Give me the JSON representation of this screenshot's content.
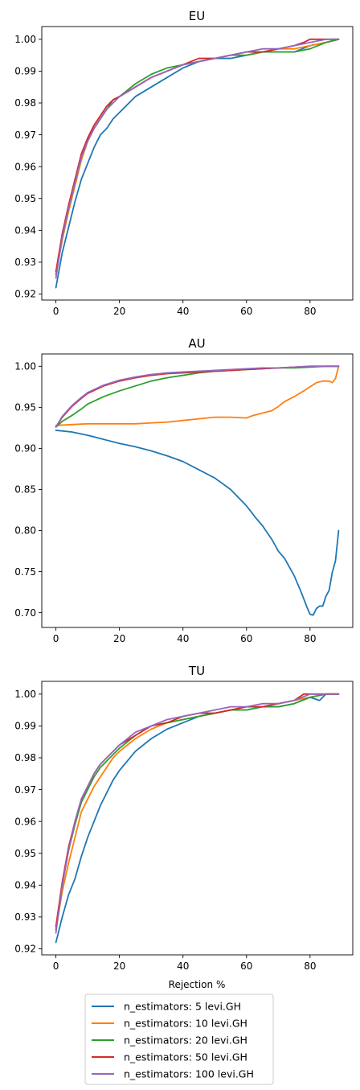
{
  "colors": {
    "s5": "#1f77b4",
    "s10": "#ff7f0e",
    "s20": "#2ca02c",
    "s50": "#d62728",
    "s100": "#9467bd"
  },
  "legend": {
    "placement": "bottom-center",
    "entries": [
      "n_estimators: 5 levi.GH",
      "n_estimators: 10 levi.GH",
      "n_estimators: 20 levi.GH",
      "n_estimators: 50 levi.GH",
      "n_estimators: 100 levi.GH"
    ]
  },
  "chart_data": [
    {
      "type": "line",
      "title": "EU",
      "xlabel": "",
      "ylabel": "",
      "xlim": [
        -4.45,
        93.45
      ],
      "ylim": [
        0.9181,
        1.004
      ],
      "xticks": [
        0,
        20,
        40,
        60,
        80
      ],
      "xtick_labels": [
        "0",
        "20",
        "40",
        "60",
        "80"
      ],
      "yticks": [
        0.92,
        0.93,
        0.94,
        0.95,
        0.96,
        0.97,
        0.98,
        0.99,
        1.0
      ],
      "ytick_labels": [
        "0.92",
        "0.93",
        "0.94",
        "0.95",
        "0.96",
        "0.97",
        "0.98",
        "0.99",
        "1.00"
      ],
      "grid": false,
      "series": [
        {
          "name": "n_estimators: 5 levi.GH",
          "color_key": "s5",
          "x": [
            0,
            2,
            4,
            6,
            8,
            10,
            12,
            14,
            16,
            18,
            20,
            25,
            30,
            35,
            40,
            45,
            50,
            55,
            60,
            65,
            70,
            75,
            80,
            85,
            89
          ],
          "y": [
            0.922,
            0.933,
            0.941,
            0.949,
            0.956,
            0.961,
            0.966,
            0.97,
            0.972,
            0.975,
            0.977,
            0.982,
            0.985,
            0.988,
            0.991,
            0.993,
            0.994,
            0.994,
            0.995,
            0.996,
            0.996,
            0.996,
            0.998,
            0.999,
            1.0
          ]
        },
        {
          "name": "n_estimators: 10 levi.GH",
          "color_key": "s10",
          "x": [
            0,
            2,
            4,
            6,
            8,
            10,
            12,
            14,
            16,
            18,
            20,
            25,
            30,
            35,
            40,
            45,
            50,
            55,
            60,
            65,
            70,
            75,
            80,
            85,
            89
          ],
          "y": [
            0.926,
            0.937,
            0.946,
            0.954,
            0.962,
            0.968,
            0.972,
            0.975,
            0.978,
            0.981,
            0.982,
            0.985,
            0.988,
            0.99,
            0.992,
            0.993,
            0.994,
            0.995,
            0.996,
            0.996,
            0.997,
            0.997,
            0.998,
            0.999,
            1.0
          ]
        },
        {
          "name": "n_estimators: 20 levi.GH",
          "color_key": "s20",
          "x": [
            0,
            2,
            4,
            6,
            8,
            10,
            12,
            14,
            16,
            18,
            20,
            25,
            30,
            35,
            40,
            45,
            50,
            55,
            60,
            65,
            70,
            75,
            80,
            85,
            89
          ],
          "y": [
            0.926,
            0.938,
            0.947,
            0.955,
            0.963,
            0.968,
            0.972,
            0.975,
            0.978,
            0.981,
            0.982,
            0.986,
            0.989,
            0.991,
            0.992,
            0.993,
            0.994,
            0.995,
            0.995,
            0.996,
            0.996,
            0.996,
            0.997,
            0.999,
            1.0
          ]
        },
        {
          "name": "n_estimators: 50 levi.GH",
          "color_key": "s50",
          "x": [
            0,
            2,
            4,
            6,
            8,
            10,
            12,
            14,
            16,
            18,
            20,
            25,
            30,
            35,
            40,
            45,
            50,
            55,
            60,
            65,
            70,
            75,
            78,
            80,
            85,
            89
          ],
          "y": [
            0.927,
            0.939,
            0.948,
            0.956,
            0.964,
            0.969,
            0.973,
            0.976,
            0.979,
            0.981,
            0.982,
            0.985,
            0.988,
            0.99,
            0.992,
            0.994,
            0.994,
            0.995,
            0.996,
            0.996,
            0.997,
            0.998,
            0.999,
            1.0,
            1.0,
            1.0
          ]
        },
        {
          "name": "n_estimators: 100 levi.GH",
          "color_key": "s100",
          "x": [
            0,
            2,
            4,
            6,
            8,
            10,
            12,
            14,
            16,
            18,
            20,
            25,
            30,
            35,
            40,
            45,
            50,
            55,
            60,
            65,
            70,
            75,
            80,
            85,
            89
          ],
          "y": [
            0.925,
            0.938,
            0.947,
            0.955,
            0.963,
            0.968,
            0.972,
            0.975,
            0.978,
            0.98,
            0.982,
            0.985,
            0.988,
            0.99,
            0.992,
            0.993,
            0.994,
            0.995,
            0.996,
            0.997,
            0.997,
            0.998,
            0.999,
            1.0,
            1.0
          ]
        }
      ]
    },
    {
      "type": "line",
      "title": "AU",
      "xlabel": "",
      "ylabel": "",
      "xlim": [
        -4.45,
        93.45
      ],
      "ylim": [
        0.682,
        1.015
      ],
      "xticks": [
        0,
        20,
        40,
        60,
        80
      ],
      "xtick_labels": [
        "0",
        "20",
        "40",
        "60",
        "80"
      ],
      "yticks": [
        0.7,
        0.75,
        0.8,
        0.85,
        0.9,
        0.95,
        1.0
      ],
      "ytick_labels": [
        "0.70",
        "0.75",
        "0.80",
        "0.85",
        "0.90",
        "0.95",
        "1.00"
      ],
      "grid": false,
      "series": [
        {
          "name": "n_estimators: 5 levi.GH",
          "color_key": "s5",
          "x": [
            0,
            5,
            10,
            15,
            20,
            25,
            30,
            35,
            40,
            45,
            50,
            55,
            60,
            63,
            65,
            68,
            70,
            72,
            75,
            77,
            79,
            80,
            81,
            82,
            83,
            84,
            85,
            86,
            87,
            88,
            89
          ],
          "y": [
            0.922,
            0.92,
            0.916,
            0.911,
            0.906,
            0.902,
            0.897,
            0.891,
            0.884,
            0.874,
            0.864,
            0.85,
            0.83,
            0.815,
            0.806,
            0.789,
            0.775,
            0.766,
            0.745,
            0.727,
            0.707,
            0.698,
            0.697,
            0.705,
            0.708,
            0.708,
            0.72,
            0.727,
            0.749,
            0.763,
            0.8
          ]
        },
        {
          "name": "n_estimators: 10 levi.GH",
          "color_key": "s10",
          "x": [
            0,
            5,
            10,
            15,
            20,
            25,
            30,
            35,
            40,
            45,
            50,
            55,
            60,
            62,
            65,
            68,
            70,
            72,
            75,
            78,
            80,
            82,
            84,
            86,
            87,
            88,
            89
          ],
          "y": [
            0.928,
            0.929,
            0.93,
            0.93,
            0.93,
            0.93,
            0.931,
            0.932,
            0.934,
            0.936,
            0.938,
            0.938,
            0.937,
            0.94,
            0.943,
            0.946,
            0.951,
            0.957,
            0.963,
            0.97,
            0.975,
            0.98,
            0.982,
            0.982,
            0.98,
            0.985,
            1.0
          ]
        },
        {
          "name": "n_estimators: 20 levi.GH",
          "color_key": "s20",
          "x": [
            0,
            2,
            5,
            8,
            10,
            15,
            20,
            25,
            30,
            35,
            40,
            45,
            50,
            55,
            60,
            65,
            70,
            75,
            80,
            85,
            89
          ],
          "y": [
            0.926,
            0.933,
            0.94,
            0.948,
            0.954,
            0.963,
            0.97,
            0.976,
            0.982,
            0.986,
            0.989,
            0.992,
            0.994,
            0.995,
            0.996,
            0.997,
            0.998,
            0.998,
            0.999,
            1.0,
            1.0
          ]
        },
        {
          "name": "n_estimators: 50 levi.GH",
          "color_key": "s50",
          "x": [
            0,
            2,
            5,
            8,
            10,
            15,
            20,
            25,
            30,
            35,
            40,
            45,
            50,
            55,
            60,
            65,
            70,
            75,
            80,
            85,
            89
          ],
          "y": [
            0.926,
            0.938,
            0.951,
            0.961,
            0.967,
            0.976,
            0.982,
            0.986,
            0.989,
            0.991,
            0.992,
            0.993,
            0.994,
            0.995,
            0.996,
            0.997,
            0.998,
            0.999,
            1.0,
            1.0,
            1.0
          ]
        },
        {
          "name": "n_estimators: 100 levi.GH",
          "color_key": "s100",
          "x": [
            0,
            2,
            5,
            8,
            10,
            15,
            20,
            25,
            30,
            35,
            40,
            45,
            50,
            55,
            60,
            65,
            70,
            75,
            80,
            85,
            89
          ],
          "y": [
            0.926,
            0.939,
            0.952,
            0.962,
            0.968,
            0.977,
            0.983,
            0.987,
            0.99,
            0.992,
            0.993,
            0.994,
            0.995,
            0.996,
            0.997,
            0.998,
            0.998,
            0.999,
            1.0,
            1.0,
            1.0
          ]
        }
      ]
    },
    {
      "type": "line",
      "title": "TU",
      "xlabel": "Rejection %",
      "ylabel": "",
      "xlim": [
        -4.45,
        93.45
      ],
      "ylim": [
        0.9181,
        1.004
      ],
      "xticks": [
        0,
        20,
        40,
        60,
        80
      ],
      "xtick_labels": [
        "0",
        "20",
        "40",
        "60",
        "80"
      ],
      "yticks": [
        0.92,
        0.93,
        0.94,
        0.95,
        0.96,
        0.97,
        0.98,
        0.99,
        1.0
      ],
      "ytick_labels": [
        "0.92",
        "0.93",
        "0.94",
        "0.95",
        "0.96",
        "0.97",
        "0.98",
        "0.99",
        "1.00"
      ],
      "grid": false,
      "series": [
        {
          "name": "n_estimators: 5 levi.GH",
          "color_key": "s5",
          "x": [
            0,
            2,
            4,
            6,
            8,
            10,
            12,
            14,
            16,
            18,
            20,
            25,
            30,
            35,
            40,
            45,
            50,
            55,
            60,
            65,
            70,
            75,
            80,
            83,
            85,
            89
          ],
          "y": [
            0.922,
            0.93,
            0.937,
            0.942,
            0.949,
            0.955,
            0.96,
            0.965,
            0.969,
            0.973,
            0.976,
            0.982,
            0.986,
            0.989,
            0.991,
            0.993,
            0.994,
            0.995,
            0.995,
            0.996,
            0.996,
            0.997,
            0.999,
            0.998,
            1.0,
            1.0
          ]
        },
        {
          "name": "n_estimators: 10 levi.GH",
          "color_key": "s10",
          "x": [
            0,
            2,
            4,
            6,
            8,
            10,
            12,
            14,
            16,
            18,
            20,
            25,
            30,
            35,
            40,
            45,
            50,
            55,
            60,
            65,
            70,
            75,
            80,
            85,
            89
          ],
          "y": [
            0.926,
            0.938,
            0.947,
            0.955,
            0.963,
            0.967,
            0.971,
            0.974,
            0.977,
            0.98,
            0.982,
            0.986,
            0.989,
            0.991,
            0.992,
            0.993,
            0.994,
            0.995,
            0.996,
            0.996,
            0.997,
            0.998,
            0.999,
            1.0,
            1.0
          ]
        },
        {
          "name": "n_estimators: 20 levi.GH",
          "color_key": "s20",
          "x": [
            0,
            2,
            4,
            6,
            8,
            10,
            12,
            14,
            16,
            18,
            20,
            25,
            30,
            35,
            40,
            45,
            50,
            55,
            60,
            65,
            70,
            75,
            80,
            85,
            89
          ],
          "y": [
            0.926,
            0.94,
            0.951,
            0.959,
            0.966,
            0.97,
            0.974,
            0.977,
            0.979,
            0.981,
            0.983,
            0.987,
            0.99,
            0.991,
            0.992,
            0.993,
            0.994,
            0.995,
            0.995,
            0.996,
            0.996,
            0.997,
            0.999,
            1.0,
            1.0
          ]
        },
        {
          "name": "n_estimators: 50 levi.GH",
          "color_key": "s50",
          "x": [
            0,
            2,
            4,
            6,
            8,
            10,
            12,
            14,
            16,
            18,
            20,
            25,
            30,
            35,
            40,
            45,
            50,
            55,
            60,
            65,
            70,
            75,
            78,
            80,
            85,
            89
          ],
          "y": [
            0.927,
            0.941,
            0.952,
            0.96,
            0.967,
            0.971,
            0.975,
            0.978,
            0.98,
            0.982,
            0.984,
            0.987,
            0.99,
            0.991,
            0.993,
            0.994,
            0.994,
            0.995,
            0.996,
            0.996,
            0.997,
            0.998,
            1.0,
            1.0,
            1.0,
            1.0
          ]
        },
        {
          "name": "n_estimators: 100 levi.GH",
          "color_key": "s100",
          "x": [
            0,
            2,
            4,
            6,
            8,
            10,
            12,
            14,
            16,
            18,
            20,
            25,
            30,
            35,
            40,
            45,
            50,
            55,
            60,
            65,
            70,
            75,
            80,
            85,
            89
          ],
          "y": [
            0.925,
            0.94,
            0.951,
            0.96,
            0.967,
            0.971,
            0.975,
            0.978,
            0.98,
            0.982,
            0.984,
            0.988,
            0.99,
            0.992,
            0.993,
            0.994,
            0.995,
            0.996,
            0.996,
            0.997,
            0.997,
            0.998,
            1.0,
            1.0,
            1.0
          ]
        }
      ]
    }
  ]
}
